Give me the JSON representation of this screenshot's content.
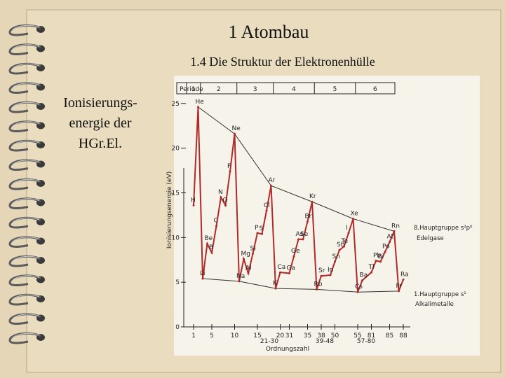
{
  "header": {
    "title": "1 Atombau",
    "subtitle": "1.4 Die Struktur der Elektronenhülle"
  },
  "side_text": [
    "Ionisierungs-",
    "energie der",
    "HGr.El."
  ],
  "chart_data": {
    "type": "line",
    "period_label": "Periode",
    "periods": [
      1,
      2,
      3,
      4,
      5,
      6
    ],
    "y_label": "Ionisierungsenergie (eV)",
    "x_label": "Ordnungszahl",
    "labels": [
      "H",
      "He",
      "Li",
      "Be",
      "B",
      "C",
      "N",
      "O",
      "F",
      "Ne",
      "Na",
      "Mg",
      "Al",
      "Si",
      "P",
      "S",
      "Cl",
      "Ar",
      "K",
      "Ca",
      "Ga",
      "Ge",
      "As",
      "Se",
      "Br",
      "Kr",
      "Rb",
      "Sr",
      "In",
      "Sn",
      "Sb",
      "Te",
      "I",
      "Xe",
      "Cs",
      "Ba",
      "Tl",
      "Pb",
      "Bi",
      "Po",
      "At",
      "Rn",
      "Fr",
      "Ra"
    ],
    "x": [
      1,
      2,
      3,
      4,
      5,
      6,
      7,
      8,
      9,
      10,
      11,
      12,
      13,
      14,
      15,
      16,
      17,
      18,
      19,
      20,
      31,
      32,
      33,
      34,
      35,
      36,
      37,
      38,
      49,
      50,
      51,
      52,
      53,
      54,
      55,
      56,
      81,
      82,
      83,
      84,
      85,
      86,
      87,
      88
    ],
    "values": [
      13.6,
      24.6,
      5.4,
      9.3,
      8.3,
      11.3,
      14.5,
      13.6,
      17.4,
      21.6,
      5.1,
      7.6,
      6.0,
      8.2,
      10.5,
      10.4,
      13.0,
      15.8,
      4.3,
      6.1,
      6.0,
      7.9,
      9.8,
      9.8,
      11.8,
      14.0,
      4.2,
      5.7,
      5.8,
      7.3,
      8.6,
      9.0,
      10.5,
      12.1,
      3.9,
      5.2,
      6.1,
      7.4,
      7.3,
      8.4,
      9.5,
      10.7,
      4.0,
      5.3
    ],
    "color": "#b02a2a",
    "ylim": [
      0,
      26
    ],
    "yticks": [
      0,
      5,
      10,
      15,
      20,
      25
    ],
    "xticks": [
      1,
      5,
      10,
      15,
      20,
      31,
      35,
      38,
      50,
      55,
      81,
      85,
      88
    ],
    "x_ranges": [
      "21-30",
      "39-48",
      "57-80"
    ],
    "annotations": [
      "8.Hauptgruppe s²p⁶",
      "Edelgase",
      "1.Hauptgruppe s¹",
      "Alkalimetalle"
    ]
  }
}
